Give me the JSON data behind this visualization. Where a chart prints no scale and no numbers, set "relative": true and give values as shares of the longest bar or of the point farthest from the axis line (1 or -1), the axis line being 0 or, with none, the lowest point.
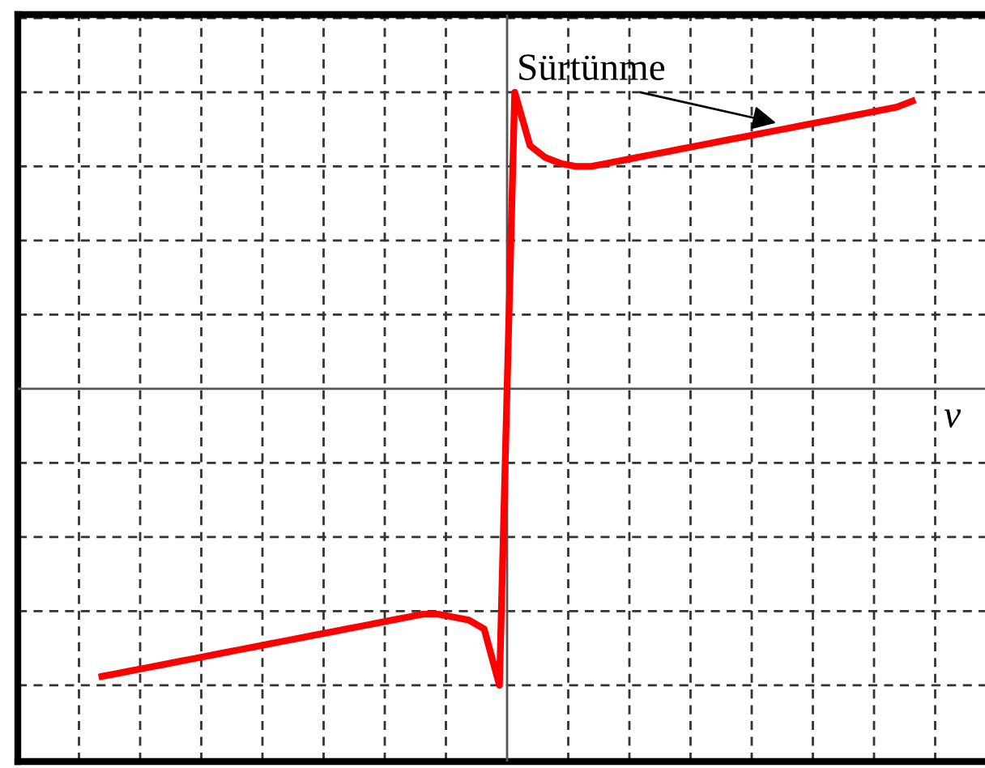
{
  "chart_data": {
    "type": "line",
    "relative": true,
    "xlabel": "v",
    "grid": true,
    "tick_labels": false,
    "line_style": "solid",
    "marker": "none",
    "annotations": [
      "Sürtünme"
    ],
    "categories": [
      null,
      null,
      null,
      null,
      null,
      null,
      null,
      null,
      null,
      null,
      null,
      null,
      null,
      null,
      null,
      null,
      null,
      null,
      null,
      null,
      null,
      null,
      null,
      null,
      null,
      null,
      null,
      null,
      null,
      null,
      null,
      null,
      null,
      null,
      null,
      null,
      null,
      null,
      null,
      null,
      null,
      null,
      null,
      null,
      null,
      null,
      null,
      null,
      null,
      null,
      null,
      null,
      null,
      null
    ],
    "series": [
      {
        "color": "#ff0000",
        "values": [
          -0.97,
          -0.96,
          -0.95,
          -0.94,
          -0.93,
          -0.92,
          -0.91,
          -0.9,
          -0.89,
          -0.88,
          -0.87,
          -0.86,
          -0.85,
          -0.84,
          -0.83,
          -0.82,
          -0.81,
          -0.8,
          -0.79,
          -0.78,
          -0.77,
          -0.76,
          -0.76,
          -0.77,
          -0.78,
          -0.81,
          -1.0,
          1.0,
          0.82,
          0.78,
          0.76,
          0.75,
          0.75,
          0.76,
          0.77,
          0.78,
          0.79,
          0.8,
          0.81,
          0.82,
          0.83,
          0.84,
          0.85,
          0.86,
          0.87,
          0.88,
          0.89,
          0.9,
          0.91,
          0.92,
          0.93,
          0.94,
          0.95,
          0.97
        ]
      }
    ]
  }
}
